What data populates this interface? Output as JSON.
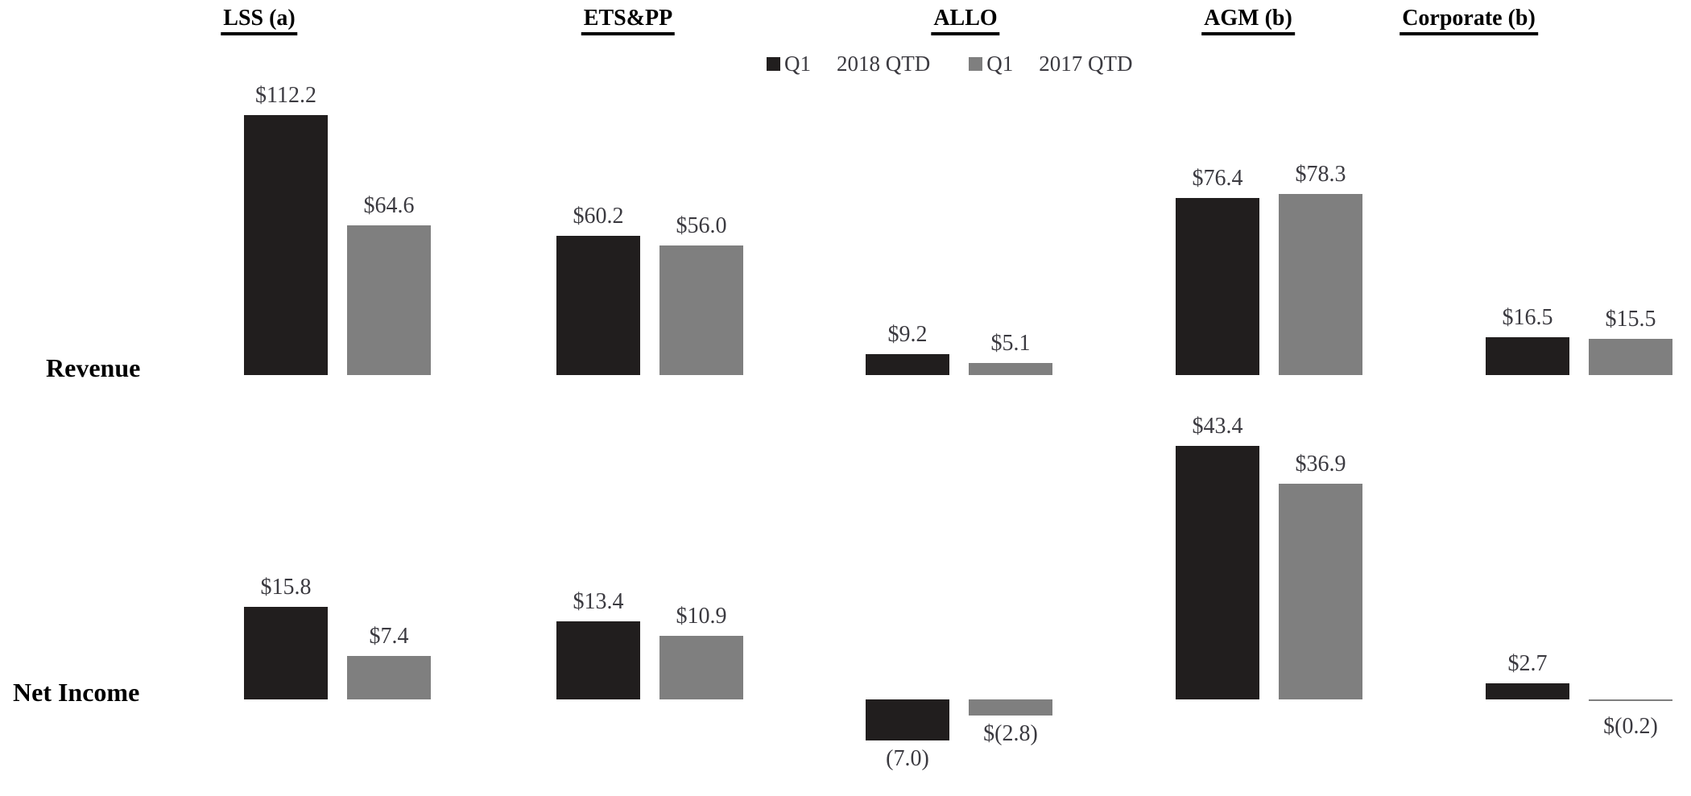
{
  "chart_data": {
    "type": "bar",
    "title": "",
    "categories": [
      "LSS (a)",
      "ETS&PP",
      "ALLO",
      "AGM (b)",
      "Corporate (b)"
    ],
    "category_slugs": [
      "lss",
      "etspp",
      "allo",
      "agm",
      "corporate"
    ],
    "legend": [
      {
        "label_q": "Q1",
        "label_period": "2018 QTD",
        "swatch_color": "#211e1e"
      },
      {
        "label_q": "Q1",
        "label_period": "2017 QTD",
        "swatch_color": "#7f7f7f"
      }
    ],
    "rows": [
      {
        "name": "Revenue",
        "series": [
          {
            "name": "Q1 2018 QTD",
            "values": [
              112.2,
              60.2,
              9.2,
              76.4,
              16.5
            ],
            "labels": [
              "$112.2",
              "$60.2",
              "$9.2",
              "$76.4",
              "$16.5"
            ]
          },
          {
            "name": "Q1 2017 QTD",
            "values": [
              64.6,
              56.0,
              5.1,
              78.3,
              15.5
            ],
            "labels": [
              "$64.6",
              "$56.0",
              "$5.1",
              "$78.3",
              "$15.5"
            ]
          }
        ]
      },
      {
        "name": "Net Income",
        "series": [
          {
            "name": "Q1 2018 QTD",
            "values": [
              15.8,
              13.4,
              -7.0,
              43.4,
              2.7
            ],
            "labels": [
              "$15.8",
              "$13.4",
              "(7.0)",
              "$43.4",
              "$2.7"
            ]
          },
          {
            "name": "Q1 2017 QTD",
            "values": [
              7.4,
              10.9,
              -2.8,
              36.9,
              -0.2
            ],
            "labels": [
              "$7.4",
              "$10.9",
              "$(2.8)",
              "$36.9",
              "$(0.2)"
            ]
          }
        ]
      }
    ],
    "colors": {
      "series_2018": "#211e1e",
      "series_2017": "#7f7f7f",
      "value_label": "#3b3a40",
      "heading": "#000000"
    },
    "layout_hints": {
      "grid": false,
      "axes_hidden": true,
      "legend_position": "top-center",
      "negative_labels_below_baseline": true
    }
  }
}
